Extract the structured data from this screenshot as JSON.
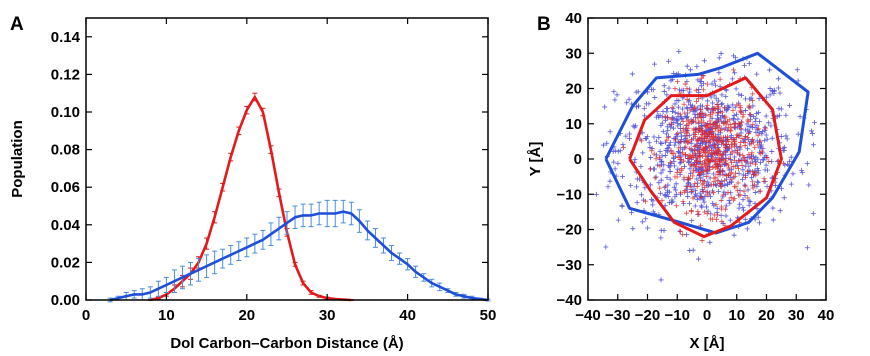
{
  "chart_data": [
    {
      "type": "line",
      "panel_label": "A",
      "xlabel": "Dol Carbon–Carbon Distance (Å)",
      "ylabel": "Population",
      "xlim": [
        0,
        50
      ],
      "ylim": [
        0,
        0.15
      ],
      "xticks": [
        "0",
        "10",
        "20",
        "30",
        "40",
        "50"
      ],
      "yticks": [
        "0.00",
        "0.02",
        "0.04",
        "0.06",
        "0.08",
        "0.10",
        "0.12",
        "0.14"
      ],
      "grid": false,
      "series": [
        {
          "color": "#e31a1c",
          "error_bars": true,
          "x": [
            8,
            9,
            10,
            11,
            12,
            13,
            14,
            15,
            16,
            17,
            18,
            19,
            20,
            21,
            22,
            23,
            24,
            25,
            26,
            27,
            28,
            29,
            30,
            31,
            32,
            33
          ],
          "y": [
            0.0,
            0.001,
            0.003,
            0.006,
            0.01,
            0.014,
            0.02,
            0.03,
            0.044,
            0.06,
            0.076,
            0.09,
            0.101,
            0.108,
            0.1,
            0.08,
            0.057,
            0.036,
            0.019,
            0.009,
            0.004,
            0.002,
            0.001,
            0.0005,
            0.0002,
            0.0
          ],
          "err": [
            0.0002,
            0.0005,
            0.001,
            0.002,
            0.003,
            0.003,
            0.003,
            0.003,
            0.003,
            0.002,
            0.002,
            0.002,
            0.002,
            0.002,
            0.002,
            0.002,
            0.002,
            0.002,
            0.001,
            0.001,
            0.001,
            0.0005,
            0.0005,
            0.0003,
            0.0002,
            0.0002
          ]
        },
        {
          "color": "#1f4fd8",
          "error_color": "#4a8ed8",
          "error_bars": true,
          "x": [
            3,
            4,
            5,
            6,
            7,
            8,
            9,
            10,
            11,
            12,
            13,
            14,
            15,
            16,
            17,
            18,
            19,
            20,
            21,
            22,
            23,
            24,
            25,
            26,
            27,
            28,
            29,
            30,
            31,
            32,
            33,
            34,
            35,
            36,
            37,
            38,
            39,
            40,
            41,
            42,
            43,
            44,
            45,
            46,
            47,
            48,
            49,
            50
          ],
          "y": [
            0.0,
            0.001,
            0.002,
            0.003,
            0.003,
            0.004,
            0.006,
            0.008,
            0.01,
            0.012,
            0.014,
            0.016,
            0.018,
            0.02,
            0.022,
            0.024,
            0.026,
            0.028,
            0.03,
            0.032,
            0.035,
            0.038,
            0.041,
            0.044,
            0.045,
            0.045,
            0.046,
            0.046,
            0.046,
            0.047,
            0.046,
            0.042,
            0.037,
            0.033,
            0.029,
            0.025,
            0.022,
            0.019,
            0.015,
            0.012,
            0.009,
            0.007,
            0.005,
            0.003,
            0.002,
            0.001,
            0.0005,
            0.0
          ],
          "err": [
            0.001,
            0.001,
            0.002,
            0.002,
            0.003,
            0.003,
            0.004,
            0.004,
            0.006,
            0.006,
            0.006,
            0.006,
            0.006,
            0.006,
            0.005,
            0.005,
            0.005,
            0.005,
            0.005,
            0.005,
            0.006,
            0.006,
            0.006,
            0.006,
            0.006,
            0.006,
            0.006,
            0.007,
            0.007,
            0.006,
            0.006,
            0.006,
            0.005,
            0.005,
            0.004,
            0.004,
            0.003,
            0.003,
            0.003,
            0.002,
            0.002,
            0.002,
            0.001,
            0.001,
            0.001,
            0.001,
            0.0005,
            0.0005
          ]
        }
      ]
    },
    {
      "type": "scatter",
      "panel_label": "B",
      "xlabel": "X [Å]",
      "ylabel": "Y [Å]",
      "xlim": [
        -40,
        40
      ],
      "ylim": [
        -40,
        40
      ],
      "xticks": [
        "−40",
        "−30",
        "−20",
        "−10",
        "0",
        "10",
        "20",
        "30",
        "40"
      ],
      "yticks": [
        "−40",
        "−30",
        "−20",
        "−10",
        "0",
        "10",
        "20",
        "30",
        "40"
      ],
      "grid": false,
      "series": [
        {
          "color": "#3a3ad8",
          "marker": "+",
          "count": 900,
          "center": [
            0,
            3
          ],
          "spread": [
            15,
            11
          ],
          "hull": [
            [
              -34,
              0
            ],
            [
              -25,
              15
            ],
            [
              -17,
              23
            ],
            [
              -3,
              24
            ],
            [
              5,
              26
            ],
            [
              17,
              30
            ],
            [
              34,
              19
            ],
            [
              31,
              2
            ],
            [
              22,
              -11
            ],
            [
              14,
              -18
            ],
            [
              3,
              -21
            ],
            [
              -9,
              -18
            ],
            [
              -26,
              -14
            ],
            [
              -34,
              0
            ]
          ]
        },
        {
          "color": "#e02020",
          "marker": "+",
          "count": 500,
          "center": [
            2,
            2
          ],
          "spread": [
            8,
            8
          ],
          "hull": [
            [
              -26,
              0
            ],
            [
              -21,
              11
            ],
            [
              -12,
              18
            ],
            [
              0,
              18
            ],
            [
              13,
              23
            ],
            [
              22,
              14
            ],
            [
              25,
              0
            ],
            [
              20,
              -11
            ],
            [
              8,
              -19
            ],
            [
              -1,
              -22
            ],
            [
              -11,
              -18
            ],
            [
              -19,
              -9
            ],
            [
              -26,
              0
            ]
          ]
        }
      ]
    }
  ]
}
